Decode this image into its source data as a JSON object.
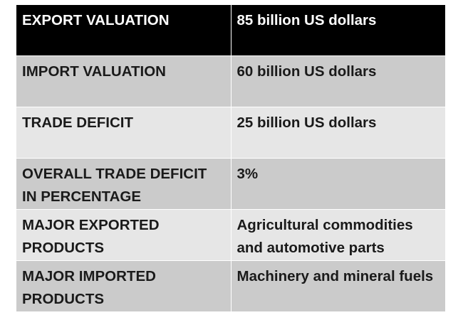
{
  "table": {
    "header": {
      "label": "EXPORT VALUATION",
      "value": "85 billion US dollars"
    },
    "rows": [
      {
        "label": "IMPORT VALUATION",
        "value": "60 billion US dollars"
      },
      {
        "label": "TRADE DEFICIT",
        "value": "25 billion US dollars"
      },
      {
        "label": "OVERALL TRADE DEFICIT IN PERCENTAGE",
        "value": "3%"
      },
      {
        "label": "MAJOR EXPORTED PRODUCTS",
        "value": "Agricultural commodities and automotive parts"
      },
      {
        "label": "MAJOR IMPORTED PRODUCTS",
        "value": "Machinery and mineral fuels"
      }
    ]
  },
  "colors": {
    "header_bg": "#000000",
    "header_text": "#ffffff",
    "row_dark": "#cbcbcb",
    "row_light": "#e6e6e6",
    "body_text": "#1a1a1a"
  }
}
